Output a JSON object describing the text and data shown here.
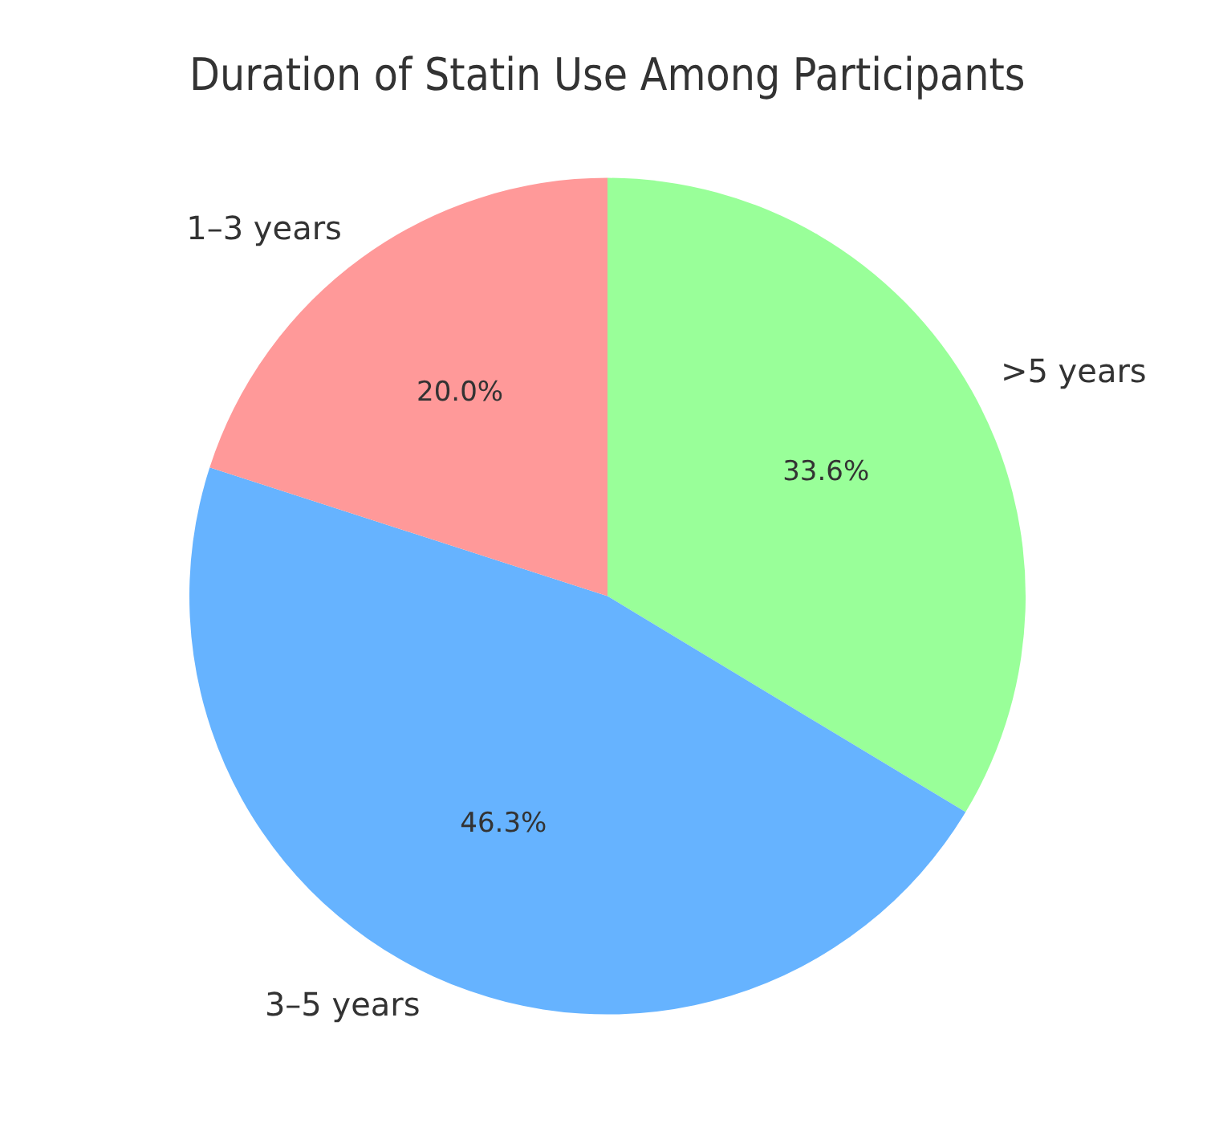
{
  "chart_data": {
    "type": "pie",
    "title": "Duration of Statin Use Among Participants",
    "categories": [
      ">5 years",
      "3–5 years",
      "1–3 years"
    ],
    "values": [
      33.6,
      46.3,
      20.0
    ],
    "colors": [
      "#99ff99",
      "#66b3ff",
      "#ff9999"
    ],
    "value_labels": [
      "33.6%",
      "46.3%",
      "20.0%"
    ],
    "legend": false
  }
}
